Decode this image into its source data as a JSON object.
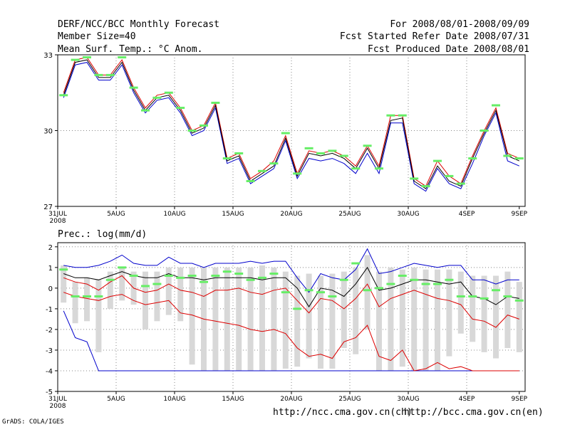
{
  "header": {
    "title": "DERF/NCC/BCC Monthly Forecast",
    "member_size": "Member Size=40",
    "variable": "Mean Surf. Temp.: °C Anom.",
    "period": "For 2008/08/01-2008/09/09",
    "refer_date": "Fcst Started Refer Date 2008/07/31",
    "produced_date": "Fcst Produced Date 2008/08/01"
  },
  "footer": {
    "url_ch": "http://ncc.cma.gov.cn(ch)",
    "url_en": "http://bcc.cma.gov.cn(en)",
    "credit": "GrADS: COLA/IGES"
  },
  "colors": {
    "mean": "#000000",
    "max": "#0000cc",
    "min": "#dd0000",
    "marker": "#66ee66",
    "box": "#d8d8d8",
    "grid": "#888888"
  },
  "chart_data": [
    {
      "type": "line",
      "title": "Mean Surf. Temp.: °C Anom.",
      "x_start": "31JUL 2008",
      "x_labels": [
        "31JUL",
        "5AUG",
        "10AUG",
        "15AUG",
        "20AUG",
        "25AUG",
        "30AUG",
        "4SEP",
        "9SEP"
      ],
      "x_sublabel": "2008",
      "yticks": [
        "27",
        "30",
        "33"
      ],
      "ylim": [
        27,
        33
      ],
      "series": [
        {
          "name": "ensemble mean",
          "values": [
            31.4,
            32.7,
            32.8,
            32.1,
            32.1,
            32.7,
            31.6,
            30.8,
            31.3,
            31.4,
            30.8,
            29.9,
            30.1,
            31.0,
            28.8,
            29.0,
            28.0,
            28.3,
            28.6,
            29.7,
            28.2,
            29.1,
            29.0,
            29.1,
            28.9,
            28.5,
            29.3,
            28.5,
            30.4,
            30.5,
            28.0,
            27.7,
            28.6,
            28.0,
            27.8,
            28.9,
            29.9,
            30.8,
            29.0,
            28.8
          ]
        },
        {
          "name": "upper",
          "values": [
            31.5,
            32.8,
            32.9,
            32.2,
            32.2,
            32.8,
            31.7,
            30.9,
            31.4,
            31.5,
            30.9,
            30.0,
            30.2,
            31.1,
            28.9,
            29.1,
            28.1,
            28.4,
            28.8,
            29.8,
            28.3,
            29.2,
            29.1,
            29.2,
            29.0,
            28.6,
            29.4,
            28.6,
            30.6,
            30.6,
            28.1,
            27.8,
            28.8,
            28.2,
            27.9,
            29.0,
            30.0,
            30.9,
            29.1,
            28.9
          ]
        },
        {
          "name": "lower",
          "values": [
            31.3,
            32.6,
            32.7,
            32.0,
            32.0,
            32.6,
            31.5,
            30.7,
            31.2,
            31.3,
            30.7,
            29.8,
            30.0,
            30.9,
            28.7,
            28.9,
            27.9,
            28.2,
            28.5,
            29.6,
            28.1,
            28.9,
            28.8,
            28.9,
            28.7,
            28.3,
            29.1,
            28.3,
            30.3,
            30.3,
            27.9,
            27.6,
            28.5,
            27.9,
            27.7,
            28.7,
            29.8,
            30.7,
            28.8,
            28.6
          ]
        },
        {
          "name": "markers",
          "values": [
            31.4,
            32.8,
            32.9,
            32.2,
            32.2,
            32.9,
            31.7,
            30.8,
            31.3,
            31.5,
            30.9,
            30.0,
            30.2,
            31.1,
            28.9,
            29.1,
            28.0,
            28.4,
            28.7,
            29.9,
            28.3,
            29.3,
            29.1,
            29.2,
            29.0,
            28.5,
            29.4,
            28.5,
            30.6,
            30.6,
            28.1,
            27.8,
            28.8,
            28.2,
            27.9,
            28.9,
            30.0,
            31.0,
            29.0,
            28.9
          ]
        }
      ]
    },
    {
      "type": "line",
      "title": "Prec.: log(mm/d)",
      "x_labels": [
        "31JUL",
        "5AUG",
        "10AUG",
        "15AUG",
        "20AUG",
        "25AUG",
        "30AUG",
        "4SEP",
        "9SEP"
      ],
      "x_sublabel": "2008",
      "yticks": [
        "-5",
        "-4",
        "-3",
        "-2",
        "-1",
        "0",
        "1",
        "2"
      ],
      "ylim": [
        -5,
        2.2
      ],
      "series": [
        {
          "name": "ensemble mean",
          "values": [
            0.7,
            0.5,
            0.5,
            0.4,
            0.6,
            0.8,
            0.6,
            0.5,
            0.5,
            0.7,
            0.5,
            0.5,
            0.4,
            0.5,
            0.5,
            0.5,
            0.5,
            0.4,
            0.5,
            0.5,
            0.0,
            -0.9,
            0.0,
            -0.1,
            -0.4,
            0.2,
            1.0,
            -0.1,
            0.0,
            0.2,
            0.4,
            0.4,
            0.3,
            0.2,
            0.3,
            -0.4,
            -0.5,
            -0.8,
            -0.4,
            -0.5
          ]
        },
        {
          "name": "max",
          "values": [
            1.1,
            1.0,
            1.0,
            1.1,
            1.3,
            1.6,
            1.2,
            1.1,
            1.1,
            1.5,
            1.2,
            1.2,
            1.0,
            1.2,
            1.2,
            1.2,
            1.3,
            1.2,
            1.3,
            1.3,
            0.5,
            -0.2,
            0.7,
            0.5,
            0.4,
            0.9,
            1.9,
            0.7,
            0.8,
            1.0,
            1.2,
            1.1,
            1.0,
            1.1,
            1.1,
            0.4,
            0.4,
            0.2,
            0.4,
            0.4
          ]
        },
        {
          "name": "upper red",
          "values": [
            0.5,
            0.3,
            0.2,
            -0.1,
            0.3,
            0.6,
            0.0,
            -0.2,
            -0.1,
            0.2,
            -0.1,
            -0.2,
            -0.4,
            -0.1,
            -0.1,
            0.0,
            -0.2,
            -0.3,
            -0.1,
            0.0,
            -0.6,
            -1.2,
            -0.5,
            -0.6,
            -1.0,
            -0.5,
            0.2,
            -0.9,
            -0.5,
            -0.3,
            -0.1,
            -0.3,
            -0.5,
            -0.6,
            -0.8,
            -1.5,
            -1.6,
            -1.9,
            -1.3,
            -1.5
          ]
        },
        {
          "name": "lower red",
          "values": [
            -0.2,
            -0.4,
            -0.5,
            -0.6,
            -0.4,
            -0.3,
            -0.6,
            -0.8,
            -0.7,
            -0.6,
            -1.2,
            -1.3,
            -1.5,
            -1.6,
            -1.7,
            -1.8,
            -2.0,
            -2.1,
            -2.0,
            -2.2,
            -2.9,
            -3.3,
            -3.2,
            -3.4,
            -2.6,
            -2.4,
            -1.8,
            -3.3,
            -3.5,
            -3.0,
            -4.0,
            -3.9,
            -3.6,
            -3.9,
            -3.8,
            -4.0,
            -4.0,
            -4.0,
            -4.0,
            -4.0
          ]
        },
        {
          "name": "min",
          "values": [
            -1.1,
            -2.4,
            -2.6,
            -4.0,
            -4.0,
            -4.0,
            -4.0,
            -4.0,
            -4.0,
            -4.0,
            -4.0,
            -4.0,
            -4.0,
            -4.0,
            -4.0,
            -4.0,
            -4.0,
            -4.0,
            -4.0,
            -4.0,
            -4.0,
            -4.0,
            -4.0,
            -4.0,
            -4.0,
            -4.0,
            -4.0,
            -4.0,
            -4.0,
            -4.0,
            -4.0,
            -4.0,
            -4.0,
            -4.0,
            -4.0,
            -4.0,
            -4.0,
            -4.0,
            -4.0,
            -4.0
          ]
        },
        {
          "name": "markers",
          "values": [
            0.9,
            -0.4,
            -0.4,
            -0.4,
            0.4,
            1.0,
            0.6,
            0.1,
            0.2,
            0.6,
            0.5,
            0.6,
            0.3,
            0.6,
            0.8,
            0.7,
            0.4,
            0.5,
            0.7,
            -0.2,
            -1.0,
            -0.1,
            -0.2,
            -0.4,
            0.4,
            1.2,
            -0.1,
            0.0,
            0.2,
            0.6,
            0.4,
            0.2,
            0.2,
            0.4,
            -0.4,
            -0.4,
            -0.5,
            -0.1,
            -0.4,
            -0.6
          ]
        },
        {
          "name": "box top",
          "values": [
            1.1,
            0.3,
            0.5,
            0.4,
            0.8,
            1.0,
            0.8,
            0.8,
            0.8,
            1.0,
            1.0,
            1.0,
            1.0,
            1.0,
            1.0,
            1.0,
            1.0,
            1.1,
            1.0,
            0.8,
            0.6,
            0.7,
            0.6,
            0.7,
            0.8,
            1.0,
            1.6,
            0.8,
            1.0,
            0.9,
            1.0,
            0.9,
            0.9,
            0.9,
            0.8,
            0.6,
            0.6,
            0.6,
            0.8,
            0.3
          ]
        },
        {
          "name": "box bottom",
          "values": [
            -0.7,
            -1.7,
            -1.6,
            -3.1,
            -1.0,
            -0.6,
            -0.8,
            -2.0,
            -1.6,
            -1.3,
            -1.6,
            -3.7,
            -4.0,
            -4.0,
            -4.0,
            -4.0,
            -4.0,
            -4.0,
            -4.0,
            -3.9,
            -3.8,
            -3.4,
            -3.9,
            -3.9,
            -2.9,
            -3.2,
            -2.0,
            -4.0,
            -4.0,
            -3.8,
            -4.0,
            -4.0,
            -4.0,
            -3.3,
            -2.2,
            -2.6,
            -3.1,
            -3.4,
            -2.9,
            -3.1
          ]
        }
      ]
    }
  ]
}
